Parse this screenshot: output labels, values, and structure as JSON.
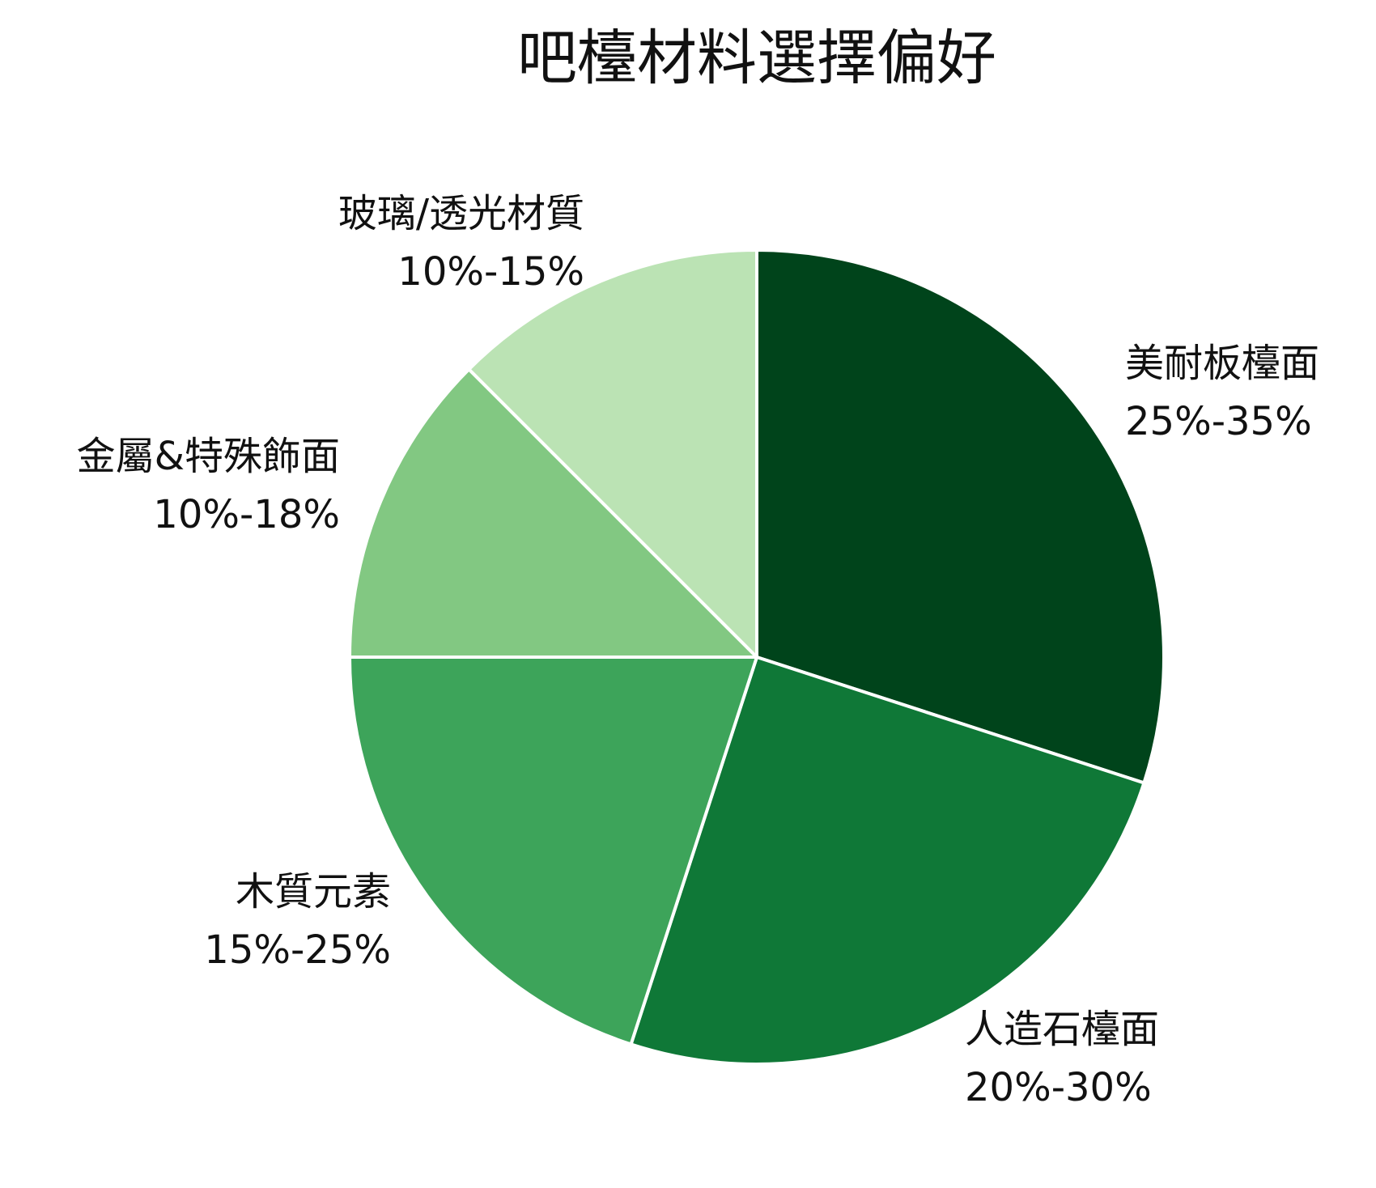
{
  "chart_data": {
    "type": "pie",
    "title": "吧檯材料選擇偏好",
    "start_angle": "12 o'clock",
    "direction": "clockwise",
    "slice_border_color": "#ffffff",
    "slices": [
      {
        "label": "美耐板檯面",
        "range": "25%-35%",
        "value": 30,
        "color": "#00441b"
      },
      {
        "label": "人造石檯面",
        "range": "20%-30%",
        "value": 25,
        "color": "#0f7837"
      },
      {
        "label": "木質元素",
        "range": "15%-25%",
        "value": 20,
        "color": "#3da45a"
      },
      {
        "label": "金屬&特殊飾面",
        "range": "10%-18%",
        "value": 12.5,
        "color": "#82c882"
      },
      {
        "label": "玻璃/透光材質",
        "range": "10%-15%",
        "value": 12.5,
        "color": "#bbe3b4"
      }
    ]
  }
}
